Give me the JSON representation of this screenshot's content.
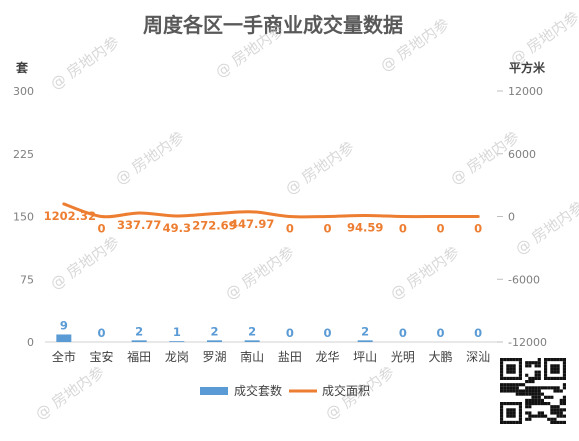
{
  "chart_data": {
    "type": "bar+line",
    "title": "周度各区一手商业成交量数据",
    "categories": [
      "全市",
      "宝安",
      "福田",
      "龙岗",
      "罗湖",
      "南山",
      "盐田",
      "龙华",
      "坪山",
      "光明",
      "大鹏",
      "深汕"
    ],
    "series": [
      {
        "name": "成交套数",
        "type": "bar",
        "axis": "left",
        "color": "#5b9bd5",
        "values": [
          9,
          0,
          2,
          1,
          2,
          2,
          0,
          0,
          2,
          0,
          0,
          0
        ],
        "labels": [
          "9",
          "0",
          "2",
          "1",
          "2",
          "2",
          "0",
          "0",
          "2",
          "0",
          "0",
          "0"
        ]
      },
      {
        "name": "成交面积",
        "type": "line",
        "axis": "right",
        "color": "#ed7d31",
        "values": [
          1202.32,
          0,
          337.77,
          49.3,
          272.69,
          447.97,
          0,
          0,
          94.59,
          0,
          0,
          0
        ],
        "labels": [
          "1202.32",
          "0",
          "337.77",
          "49.3",
          "272.69",
          "447.97",
          "0",
          "0",
          "94.59",
          "0",
          "0",
          "0"
        ]
      }
    ],
    "y_left": {
      "label": "套",
      "ylim": [
        0,
        300
      ],
      "ticks": [
        "0",
        "75",
        "150",
        "225",
        "300"
      ]
    },
    "y_right": {
      "label": "平方米",
      "ylim": [
        -12000,
        12000
      ],
      "ticks": [
        "-12000",
        "-6000",
        "0",
        "6000",
        "12000"
      ]
    },
    "legend": "bottom",
    "grid": false
  },
  "watermark": "@ 房地内参",
  "icons": {
    "qr": "qr-code-icon"
  }
}
